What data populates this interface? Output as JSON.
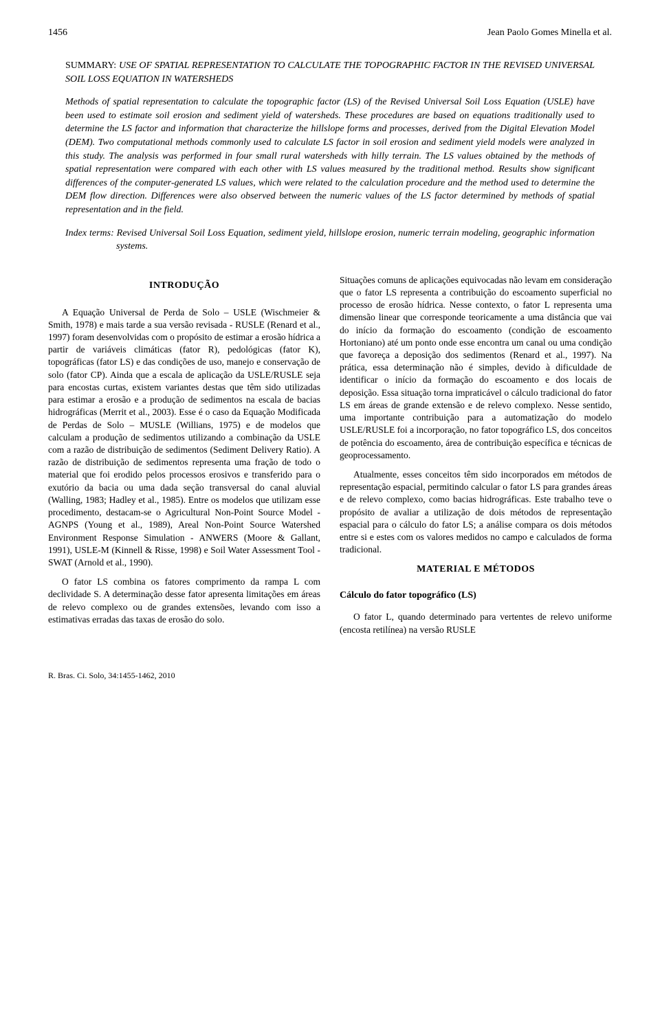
{
  "header": {
    "page_number": "1456",
    "running_head": "Jean Paolo Gomes Minella et al."
  },
  "summary": {
    "label": "SUMMARY:",
    "title": "USE OF SPATIAL REPRESENTATION TO CALCULATE THE TOPOGRAPHIC FACTOR IN THE REVISED UNIVERSAL SOIL LOSS EQUATION IN WATERSHEDS",
    "body": "Methods of spatial representation to calculate the topographic factor (LS) of the Revised Universal Soil Loss Equation (USLE) have been used to estimate soil erosion and sediment yield of watersheds. These procedures are based on equations traditionally used to determine the LS factor and information that characterize the hillslope forms and processes, derived from the Digital Elevation Model (DEM). Two computational methods commonly used to calculate LS factor in soil erosion and sediment yield models were analyzed in this study. The analysis was performed in four small rural watersheds with hilly terrain. The LS values obtained by the methods of spatial representation were compared with each other with LS values measured by the traditional method. Results show significant differences of the computer-generated LS values, which were related to the calculation procedure and the method used to determine the DEM flow direction. Differences were also observed between the numeric values of the LS factor determined by methods of spatial representation and in the field.",
    "index_label": "Index terms:",
    "index_body": "Revised Universal Soil Loss Equation, sediment yield, hillslope erosion, numeric terrain modeling, geographic information systems."
  },
  "left_column": {
    "heading": "INTRODUÇÃO",
    "p1": "A Equação Universal de Perda de Solo – USLE (Wischmeier & Smith, 1978) e mais tarde a sua versão revisada - RUSLE (Renard et al., 1997) foram desenvolvidas com o propósito de estimar a erosão hídrica a partir de variáveis climáticas (fator R), pedológicas (fator K), topográficas (fator LS) e das condições de uso, manejo e conservação de solo (fator CP). Ainda que a escala de aplicação da USLE/RUSLE seja para encostas curtas, existem variantes destas que têm sido utilizadas para estimar a erosão e a produção de sedimentos na escala de bacias hidrográficas (Merrit et al., 2003). Esse é o caso da Equação Modificada de Perdas de Solo – MUSLE (Willians, 1975) e de modelos que calculam a produção de sedimentos utilizando a combinação da USLE com a razão de distribuição de sedimentos (Sediment Delivery Ratio). A razão de distribuição de sedimentos representa uma fração de todo o material que foi erodido pelos processos erosivos e transferido para o exutório da bacia ou uma dada seção transversal do canal aluvial (Walling, 1983; Hadley et al., 1985). Entre os modelos que utilizam esse procedimento, destacam-se o Agricultural Non-Point Source Model - AGNPS (Young et al., 1989), Areal Non-Point Source Watershed Environment Response Simulation - ANWERS (Moore & Gallant, 1991), USLE-M (Kinnell & Risse, 1998) e Soil Water Assessment Tool - SWAT (Arnold et al., 1990).",
    "p2": "O fator LS combina os fatores comprimento da rampa L com declividade S. A determinação desse fator apresenta limitações em áreas de relevo complexo ou de grandes extensões, levando com isso a estimativas erradas das taxas de erosão do solo."
  },
  "right_column": {
    "p1": "Situações comuns de aplicações equivocadas não levam em consideração que o fator LS representa a contribuição do escoamento superficial no processo de erosão hídrica. Nesse contexto, o fator L representa uma dimensão linear que corresponde teoricamente a uma distância que vai do início da formação do escoamento (condição de escoamento Hortoniano) até um ponto onde esse encontra um canal ou uma condição que favoreça a deposição dos sedimentos (Renard et al., 1997). Na prática, essa determinação não é simples, devido à dificuldade de identificar o início da formação do escoamento e dos locais de deposição. Essa situação torna impraticável o cálculo tradicional do fator LS em áreas de grande extensão e de relevo complexo. Nesse sentido, uma importante contribuição para a automatização do modelo USLE/RUSLE foi a incorporação, no fator topográfico LS, dos conceitos de potência do escoamento, área de contribuição específica e técnicas de geoprocessamento.",
    "p2": "Atualmente, esses conceitos têm sido incorporados em métodos de representação espacial, permitindo calcular o fator LS para grandes áreas e de relevo complexo, como bacias hidrográficas. Este trabalho teve o propósito de avaliar a utilização de dois métodos de representação espacial para o cálculo do fator LS; a análise compara os dois métodos entre si e estes com os valores medidos no campo e calculados de forma tradicional.",
    "heading": "MATERIAL E MÉTODOS",
    "subheading": "Cálculo do fator topográfico (LS)",
    "p3": "O fator L, quando determinado para vertentes de relevo uniforme (encosta retilínea) na versão RUSLE"
  },
  "footer": {
    "citation": "R. Bras. Ci. Solo, 34:1455-1462, 2010"
  }
}
